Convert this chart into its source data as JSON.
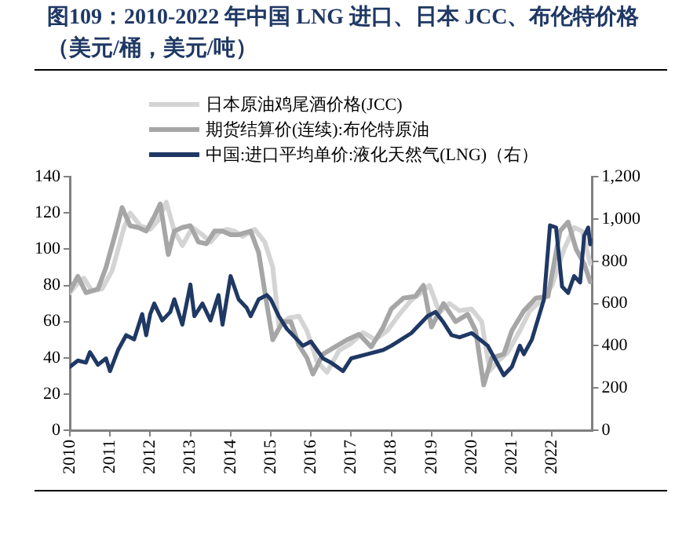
{
  "chart_data": {
    "type": "line",
    "title": "图109：2010-2022 年中国 LNG 进口、日本 JCC、布伦特价格（美元/桶，美元/吨）",
    "xlim": [
      2010,
      2023
    ],
    "xticks": [
      2010,
      2011,
      2012,
      2013,
      2014,
      2015,
      2016,
      2017,
      2018,
      2019,
      2020,
      2021,
      2022
    ],
    "ylim": [
      0,
      140
    ],
    "yticks": [
      0,
      20,
      40,
      60,
      80,
      100,
      120,
      140
    ],
    "y2lim": [
      0,
      1200
    ],
    "y2ticks": [
      {
        "value": 0,
        "label": "0"
      },
      {
        "value": 200,
        "label": "200"
      },
      {
        "value": 400,
        "label": "400"
      },
      {
        "value": 600,
        "label": "600"
      },
      {
        "value": 800,
        "label": "800"
      },
      {
        "value": 1000,
        "label": "1,000"
      },
      {
        "value": 1200,
        "label": "1,200"
      }
    ],
    "legend": "top",
    "grid": false,
    "marker": "none",
    "line_style": "solid",
    "series": [
      {
        "name": "日本原油鸡尾酒价格(JCC)",
        "color": "#d4d4d4",
        "x": [
          2010,
          2010.15,
          2010.35,
          2010.55,
          2010.8,
          2011.05,
          2011.35,
          2011.5,
          2011.75,
          2012.0,
          2012.2,
          2012.4,
          2012.6,
          2012.8,
          2013.05,
          2013.3,
          2013.5,
          2013.7,
          2013.9,
          2014.1,
          2014.3,
          2014.6,
          2014.85,
          2015.05,
          2015.2,
          2015.45,
          2015.7,
          2015.9,
          2016.15,
          2016.4,
          2016.7,
          2017.0,
          2017.3,
          2017.6,
          2017.9,
          2018.2,
          2018.5,
          2018.75,
          2018.95,
          2019.2,
          2019.45,
          2019.7,
          2020.0,
          2020.25,
          2020.45,
          2020.65,
          2020.9,
          2021.2,
          2021.45,
          2021.75,
          2022.0,
          2022.3,
          2022.55,
          2022.75,
          2022.95
        ],
        "values": [
          76,
          80,
          84,
          77,
          78,
          88,
          112,
          120,
          113,
          111,
          116,
          126,
          110,
          102,
          112,
          108,
          104,
          109,
          111,
          110,
          107,
          111,
          104,
          90,
          58,
          62,
          63,
          55,
          38,
          32,
          44,
          48,
          54,
          50,
          55,
          64,
          72,
          76,
          80,
          65,
          70,
          66,
          67,
          60,
          33,
          38,
          43,
          55,
          66,
          72,
          80,
          100,
          112,
          110,
          92
        ]
      },
      {
        "name": "期货结算价(连续):布伦特原油",
        "color": "#a6a6a6",
        "x": [
          2010,
          2010.2,
          2010.4,
          2010.7,
          2010.9,
          2011.15,
          2011.3,
          2011.5,
          2011.7,
          2011.9,
          2012.1,
          2012.25,
          2012.45,
          2012.6,
          2012.8,
          2013.0,
          2013.2,
          2013.4,
          2013.6,
          2013.8,
          2014.0,
          2014.2,
          2014.5,
          2014.7,
          2014.9,
          2015.05,
          2015.3,
          2015.5,
          2015.7,
          2015.9,
          2016.05,
          2016.3,
          2016.6,
          2016.9,
          2017.2,
          2017.5,
          2017.8,
          2018.0,
          2018.3,
          2018.6,
          2018.8,
          2019.0,
          2019.3,
          2019.6,
          2019.9,
          2020.1,
          2020.3,
          2020.5,
          2020.8,
          2021.0,
          2021.3,
          2021.6,
          2021.9,
          2022.2,
          2022.4,
          2022.6,
          2022.8,
          2022.95
        ],
        "values": [
          77,
          85,
          76,
          78,
          90,
          110,
          123,
          113,
          112,
          110,
          118,
          125,
          97,
          110,
          112,
          113,
          104,
          103,
          110,
          110,
          108,
          108,
          110,
          98,
          70,
          50,
          60,
          60,
          47,
          40,
          31,
          42,
          46,
          50,
          53,
          46,
          57,
          67,
          73,
          74,
          80,
          57,
          70,
          60,
          64,
          55,
          25,
          40,
          42,
          55,
          66,
          73,
          74,
          110,
          115,
          100,
          92,
          82
        ]
      },
      {
        "name": "中国:进口平均单价:液化天然气(LNG)（右）",
        "color": "#1f3864",
        "axis": "y2",
        "x": [
          2010,
          2010.2,
          2010.4,
          2010.5,
          2010.7,
          2010.9,
          2011.0,
          2011.2,
          2011.4,
          2011.6,
          2011.8,
          2011.9,
          2012.0,
          2012.1,
          2012.3,
          2012.5,
          2012.6,
          2012.8,
          2013.0,
          2013.1,
          2013.3,
          2013.5,
          2013.7,
          2013.8,
          2014.0,
          2014.2,
          2014.4,
          2014.5,
          2014.7,
          2014.9,
          2015.0,
          2015.2,
          2015.4,
          2015.6,
          2015.8,
          2016.0,
          2016.3,
          2016.5,
          2016.8,
          2017.0,
          2017.4,
          2017.8,
          2018.0,
          2018.5,
          2018.9,
          2019.1,
          2019.3,
          2019.5,
          2019.7,
          2020.0,
          2020.2,
          2020.4,
          2020.6,
          2020.8,
          2021.0,
          2021.2,
          2021.3,
          2021.5,
          2021.8,
          2021.95,
          2022.1,
          2022.25,
          2022.4,
          2022.55,
          2022.7,
          2022.8,
          2022.9,
          2022.95,
          2023.0
        ],
        "values": [
          300,
          330,
          320,
          370,
          310,
          340,
          280,
          380,
          450,
          430,
          550,
          450,
          550,
          600,
          520,
          560,
          620,
          500,
          690,
          540,
          600,
          520,
          640,
          500,
          730,
          620,
          580,
          540,
          620,
          640,
          620,
          540,
          480,
          440,
          400,
          420,
          340,
          320,
          280,
          340,
          360,
          380,
          400,
          460,
          540,
          560,
          510,
          450,
          440,
          460,
          430,
          400,
          330,
          260,
          300,
          400,
          360,
          430,
          620,
          970,
          960,
          680,
          650,
          730,
          700,
          920,
          960,
          880,
          900
        ]
      }
    ]
  }
}
